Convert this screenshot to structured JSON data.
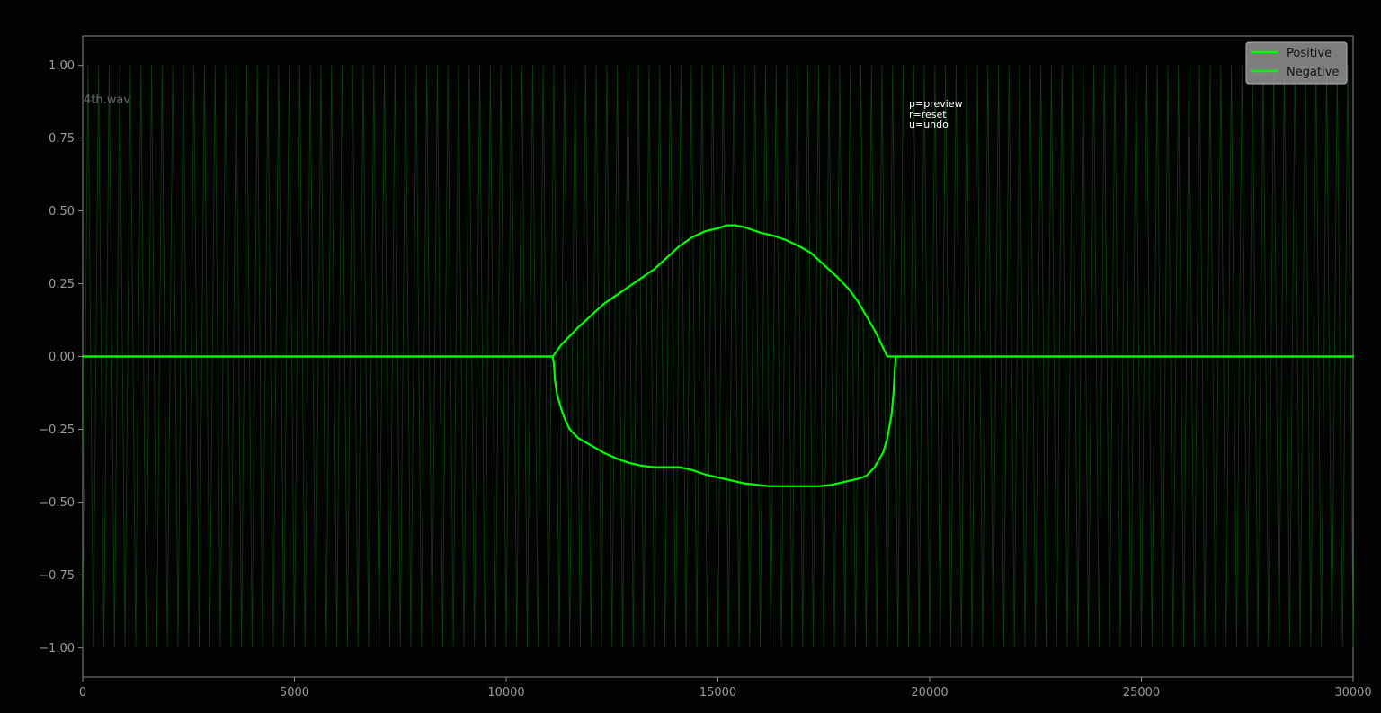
{
  "chart_data": {
    "type": "line",
    "file_label": "4th.wav",
    "help_lines": [
      "p=preview",
      "r=reset",
      "u=undo"
    ],
    "legend": [
      "Positive",
      "Negative"
    ],
    "legend_position": "top-right",
    "xlim": [
      0,
      30000
    ],
    "ylim": [
      -1.1,
      1.1
    ],
    "x_ticks": [
      0,
      5000,
      10000,
      15000,
      20000,
      25000,
      30000
    ],
    "x_tick_labels": [
      "0",
      "5000",
      "10000",
      "15000",
      "20000",
      "25000",
      "30000"
    ],
    "y_ticks": [
      1.0,
      0.75,
      0.5,
      0.25,
      0.0,
      -0.25,
      -0.5,
      -0.75,
      -1.0
    ],
    "y_tick_labels": [
      "1.00",
      "0.75",
      "0.50",
      "0.25",
      "0.00",
      "−0.25",
      "−0.50",
      "−0.75",
      "−1.00"
    ],
    "grid": false,
    "background_waveform": {
      "color": "#0d5a0d",
      "amplitude": 1.0,
      "cycles": 120
    },
    "series": [
      {
        "name": "Positive",
        "color": "#00ff00",
        "x": [
          0,
          11100,
          11150,
          11200,
          11300,
          11500,
          11700,
          12000,
          12300,
          12600,
          12900,
          13200,
          13500,
          13800,
          14100,
          14400,
          14700,
          15000,
          15200,
          15400,
          15600,
          15800,
          16000,
          16300,
          16600,
          16900,
          17200,
          17500,
          17800,
          18100,
          18300,
          18500,
          18700,
          18900,
          19000,
          19050,
          19300,
          30000
        ],
        "y": [
          0,
          0,
          0.01,
          0.02,
          0.04,
          0.07,
          0.1,
          0.14,
          0.18,
          0.21,
          0.24,
          0.27,
          0.3,
          0.34,
          0.38,
          0.41,
          0.43,
          0.44,
          0.45,
          0.45,
          0.445,
          0.435,
          0.425,
          0.415,
          0.4,
          0.38,
          0.355,
          0.315,
          0.275,
          0.23,
          0.19,
          0.14,
          0.09,
          0.03,
          0.0,
          0.0,
          0.0,
          0.0
        ]
      },
      {
        "name": "Negative",
        "color": "#00ff00",
        "x": [
          0,
          11100,
          11130,
          11150,
          11200,
          11300,
          11400,
          11500,
          11700,
          12000,
          12300,
          12600,
          12900,
          13200,
          13500,
          13800,
          14100,
          14400,
          14700,
          15000,
          15300,
          15600,
          15900,
          16200,
          16500,
          16800,
          17100,
          17400,
          17700,
          18000,
          18300,
          18500,
          18700,
          18900,
          19000,
          19100,
          19150,
          19170,
          19200,
          30000
        ],
        "y": [
          0,
          0,
          -0.03,
          -0.08,
          -0.13,
          -0.18,
          -0.22,
          -0.25,
          -0.28,
          -0.305,
          -0.33,
          -0.35,
          -0.365,
          -0.375,
          -0.38,
          -0.38,
          -0.38,
          -0.39,
          -0.405,
          -0.415,
          -0.425,
          -0.435,
          -0.44,
          -0.445,
          -0.445,
          -0.445,
          -0.445,
          -0.445,
          -0.44,
          -0.43,
          -0.42,
          -0.41,
          -0.38,
          -0.33,
          -0.28,
          -0.2,
          -0.12,
          -0.06,
          0,
          0
        ]
      }
    ]
  }
}
